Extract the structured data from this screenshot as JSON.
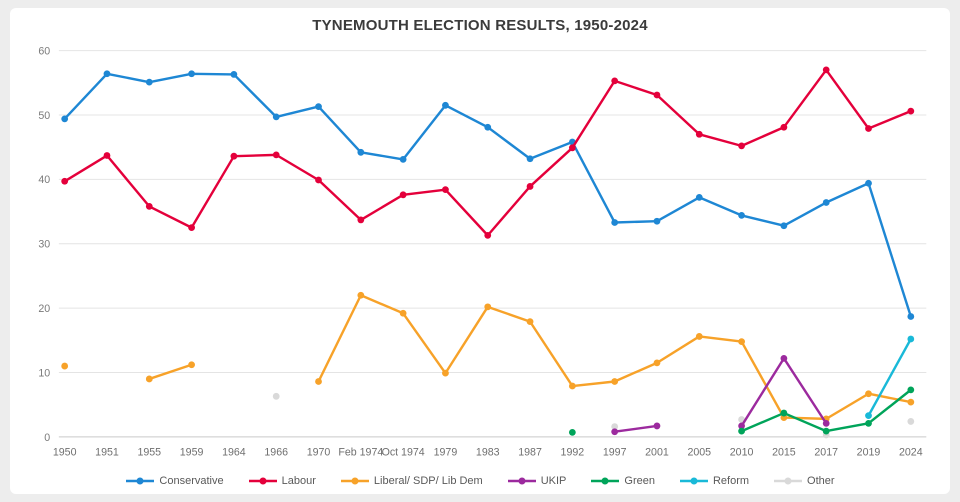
{
  "chart_data": {
    "type": "line",
    "title": "TYNEMOUTH ELECTION RESULTS, 1950-2024",
    "xlabel": "",
    "ylabel": "",
    "ylim": [
      0,
      60
    ],
    "y_ticks": [
      0,
      10,
      20,
      30,
      40,
      50,
      60
    ],
    "grid": true,
    "legend_position": "bottom",
    "categories": [
      "1950",
      "1951",
      "1955",
      "1959",
      "1964",
      "1966",
      "1970",
      "Feb 1974",
      "Oct 1974",
      "1979",
      "1983",
      "1987",
      "1992",
      "1997",
      "2001",
      "2005",
      "2010",
      "2015",
      "2017",
      "2019",
      "2024"
    ],
    "series": [
      {
        "name": "Conservative",
        "color": "#1e87d4",
        "values": [
          49.4,
          56.4,
          55.1,
          56.4,
          56.3,
          49.7,
          51.3,
          44.2,
          43.1,
          51.5,
          48.1,
          43.2,
          45.8,
          33.3,
          33.5,
          37.2,
          34.4,
          32.8,
          36.4,
          39.4,
          18.7
        ]
      },
      {
        "name": "Labour",
        "color": "#e4003b",
        "values": [
          39.7,
          43.7,
          35.8,
          32.5,
          43.6,
          43.8,
          39.9,
          33.7,
          37.6,
          38.4,
          31.3,
          38.9,
          44.9,
          55.3,
          53.1,
          47.0,
          45.2,
          48.1,
          57.0,
          47.9,
          50.6
        ]
      },
      {
        "name": "Liberal/ SDP/ Lib Dem",
        "color": "#f7a229",
        "values": [
          11.0,
          null,
          9.0,
          11.2,
          null,
          null,
          8.6,
          22.0,
          19.2,
          9.9,
          20.2,
          17.9,
          7.9,
          8.6,
          11.5,
          15.6,
          14.8,
          3.0,
          2.8,
          6.7,
          5.4
        ]
      },
      {
        "name": "UKIP",
        "color": "#9c2a9e",
        "values": [
          null,
          null,
          null,
          null,
          null,
          null,
          null,
          null,
          null,
          null,
          null,
          null,
          null,
          0.8,
          1.7,
          null,
          1.7,
          12.2,
          2.1,
          null,
          null
        ]
      },
      {
        "name": "Green",
        "color": "#00a45a",
        "values": [
          null,
          null,
          null,
          null,
          null,
          null,
          null,
          null,
          null,
          null,
          null,
          null,
          0.7,
          null,
          null,
          null,
          0.9,
          3.7,
          0.9,
          2.1,
          7.3
        ]
      },
      {
        "name": "Reform",
        "color": "#19b9d8",
        "values": [
          null,
          null,
          null,
          null,
          null,
          null,
          null,
          null,
          null,
          null,
          null,
          null,
          null,
          null,
          null,
          null,
          null,
          null,
          null,
          3.3,
          15.2
        ]
      },
      {
        "name": "Other",
        "color": "#d9d9d9",
        "values": [
          null,
          null,
          null,
          null,
          null,
          6.3,
          null,
          null,
          null,
          null,
          null,
          null,
          null,
          1.6,
          null,
          null,
          2.7,
          null,
          0.3,
          null,
          2.4
        ]
      }
    ]
  }
}
